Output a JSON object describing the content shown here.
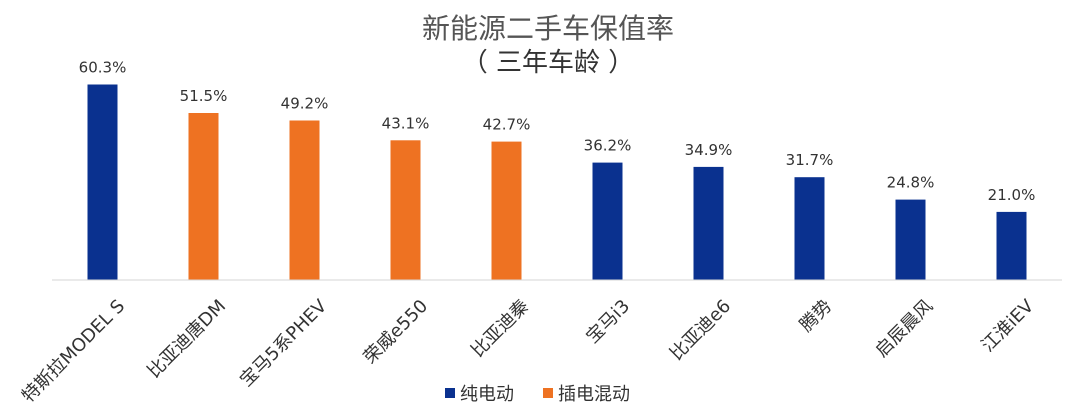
{
  "chart_data": {
    "type": "bar",
    "title": "新能源二手车保值率",
    "subtitle": "（ 三年车龄 ）",
    "categories": [
      "特斯拉MODEL S",
      "比亚迪唐DM",
      "宝马5系PHEV",
      "荣威e550",
      "比亚迪秦",
      "宝马i3",
      "比亚迪e6",
      "腾势",
      "启辰晨风",
      "江淮iEV"
    ],
    "values": [
      60.3,
      51.5,
      49.2,
      43.1,
      42.7,
      36.2,
      34.9,
      31.7,
      24.8,
      21.0
    ],
    "value_labels": [
      "60.3%",
      "51.5%",
      "49.2%",
      "43.1%",
      "42.7%",
      "36.2%",
      "34.9%",
      "31.7%",
      "24.8%",
      "21.0%"
    ],
    "bar_series": [
      "纯电动",
      "插电混动",
      "插电混动",
      "插电混动",
      "插电混动",
      "纯电动",
      "纯电动",
      "纯电动",
      "纯电动",
      "纯电动"
    ],
    "series": [
      {
        "name": "纯电动",
        "color": "#0a318f"
      },
      {
        "name": "插电混动",
        "color": "#ee7222"
      }
    ],
    "ylim": [
      0,
      62
    ],
    "grid": false,
    "legend_position": "bottom-center"
  }
}
